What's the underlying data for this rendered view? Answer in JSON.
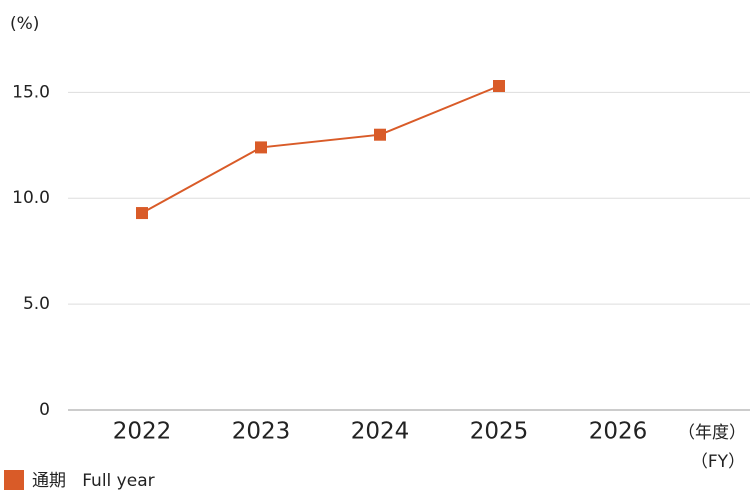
{
  "chart_data": {
    "type": "line",
    "y_label": "(%)",
    "x_label": [
      "（年度）",
      "（FY）"
    ],
    "categories": [
      "2022",
      "2023",
      "2024",
      "2025",
      "2026"
    ],
    "series": [
      {
        "name": "通期   Full year",
        "color": "#d95b28",
        "values": [
          9.3,
          12.4,
          13.0,
          15.3,
          null
        ]
      }
    ],
    "ylim": [
      0,
      17
    ],
    "yticks": [
      0,
      {
        "value": 5,
        "label": "5.0"
      },
      {
        "value": 10,
        "label": "10.0"
      },
      {
        "value": 15,
        "label": "15.0"
      }
    ],
    "grid": true,
    "legend": "bottom-left"
  }
}
